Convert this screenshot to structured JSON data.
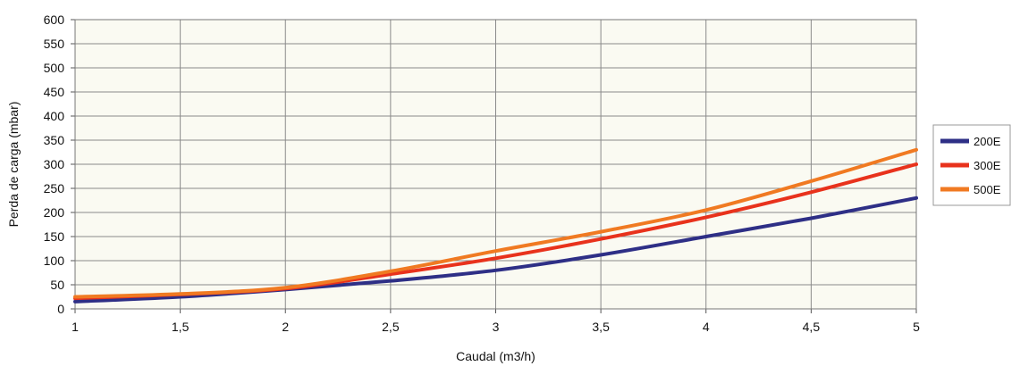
{
  "chart_data": {
    "type": "line",
    "xlabel": "Caudal (m3/h)",
    "ylabel": "Perda de carga (mbar)",
    "xlim": [
      1,
      5
    ],
    "ylim": [
      0,
      600
    ],
    "x_ticks": [
      "1",
      "1,5",
      "2",
      "2,5",
      "3",
      "3,5",
      "4",
      "4,5",
      "5"
    ],
    "y_ticks": [
      "0",
      "50",
      "100",
      "150",
      "200",
      "250",
      "300",
      "350",
      "400",
      "450",
      "500",
      "550",
      "600"
    ],
    "grid": true,
    "legend_position": "right",
    "plot_background": "#fafaf2",
    "x": [
      1,
      1.5,
      2,
      2.5,
      3,
      3.5,
      4,
      4.5,
      5
    ],
    "series": [
      {
        "name": "200E",
        "color": "#2e2f86",
        "values": [
          15,
          25,
          40,
          58,
          80,
          112,
          150,
          188,
          230
        ]
      },
      {
        "name": "300E",
        "color": "#e8321c",
        "values": [
          22,
          30,
          42,
          72,
          105,
          145,
          190,
          242,
          300
        ]
      },
      {
        "name": "500E",
        "color": "#f07a22",
        "values": [
          25,
          31,
          44,
          78,
          120,
          160,
          205,
          265,
          330
        ]
      }
    ]
  }
}
